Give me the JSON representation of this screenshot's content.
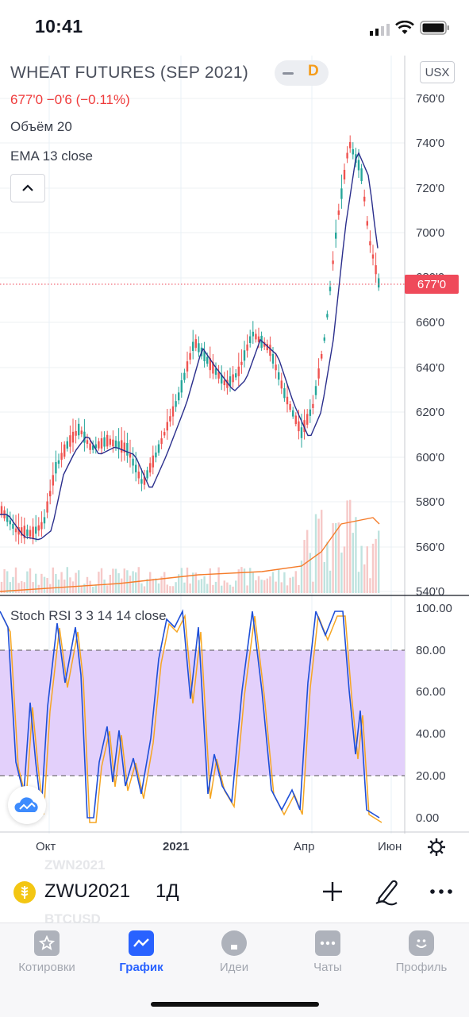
{
  "status_bar": {
    "time": "10:41"
  },
  "chart": {
    "symbol_title": "WHEAT FUTURES (SEP 2021)",
    "interval_badge": "D",
    "currency": "USX",
    "price_line": "677'0  −0'6 (−0.11%)",
    "volume_label": "Объём 20",
    "ema_label": "EMA 13 close",
    "last_price_tag": "677'0",
    "price_axis": [
      "760'0",
      "740'0",
      "720'0",
      "700'0",
      "680'0",
      "660'0",
      "640'0",
      "620'0",
      "600'0",
      "580'0",
      "560'0",
      "540'0"
    ],
    "time_axis": [
      "Окт",
      "2021",
      "Апр",
      "Июн"
    ],
    "colors": {
      "up": "#26a69a",
      "down": "#ef5350",
      "ema": "#2a2e8c",
      "volume_ma": "#f57c2a",
      "rsi_k": "#1e4fd8",
      "rsi_d": "#f5a623",
      "rsi_band": "#e3d0fb",
      "last_price": "#ef4a5a"
    }
  },
  "rsi": {
    "label": "Stoch RSI 3 3 14 14 close",
    "axis": [
      "100.00",
      "80.00",
      "60.00",
      "40.00",
      "20.00",
      "0.00"
    ]
  },
  "toolbar": {
    "symbol": "ZWU2021",
    "interval": "1Д",
    "ghost_symbols": [
      "ZWN2021",
      "BTCUSD"
    ],
    "plus_icon": "plus-icon",
    "draw_icon": "pen-icon",
    "more_icon": "more-icon"
  },
  "tabs": [
    {
      "label": "Котировки",
      "icon": "star-icon",
      "active": false
    },
    {
      "label": "График",
      "icon": "chart-icon",
      "active": true
    },
    {
      "label": "Идеи",
      "icon": "bulb-icon",
      "active": false
    },
    {
      "label": "Чаты",
      "icon": "chat-icon",
      "active": false
    },
    {
      "label": "Профиль",
      "icon": "smile-icon",
      "active": false
    }
  ]
}
